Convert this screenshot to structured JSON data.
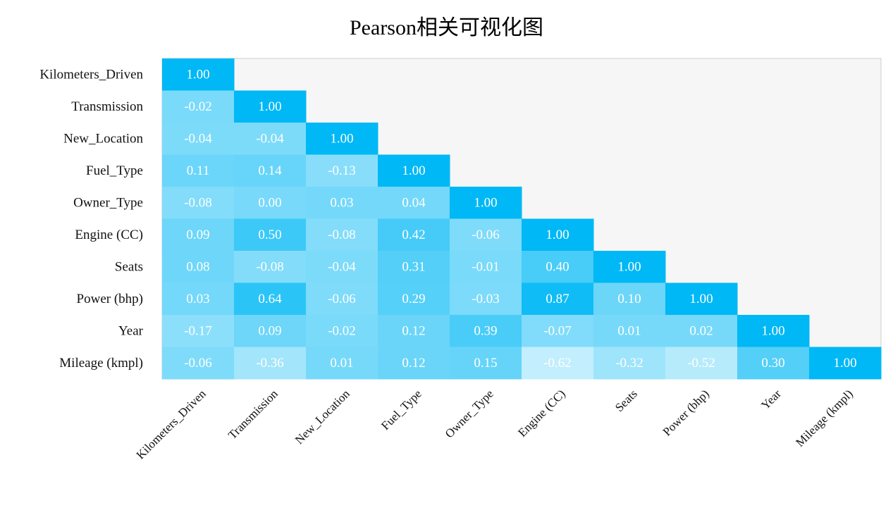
{
  "chart_data": {
    "type": "heatmap",
    "title": "Pearson相关可视化图",
    "variables": [
      "Kilometers_Driven",
      "Transmission",
      "New_Location",
      "Fuel_Type",
      "Owner_Type",
      "Engine (CC)",
      "Seats",
      "Power (bhp)",
      "Year",
      "Mileage (kmpl)"
    ],
    "matrix": [
      [
        1.0
      ],
      [
        -0.02,
        1.0
      ],
      [
        -0.04,
        -0.04,
        1.0
      ],
      [
        0.11,
        0.14,
        -0.13,
        1.0
      ],
      [
        -0.08,
        0.0,
        0.03,
        0.04,
        1.0
      ],
      [
        0.09,
        0.5,
        -0.08,
        0.42,
        -0.06,
        1.0
      ],
      [
        0.08,
        -0.08,
        -0.04,
        0.31,
        -0.01,
        0.4,
        1.0
      ],
      [
        0.03,
        0.64,
        -0.06,
        0.29,
        -0.03,
        0.87,
        0.1,
        1.0
      ],
      [
        -0.17,
        0.09,
        -0.02,
        0.12,
        0.39,
        -0.07,
        0.01,
        0.02,
        1.0
      ],
      [
        -0.06,
        -0.36,
        0.01,
        0.12,
        0.15,
        -0.62,
        -0.32,
        -0.52,
        0.3,
        1.0
      ]
    ],
    "value_format": "2 decimals",
    "mask": "upper-triangle",
    "colors": {
      "high": "#00b8f5",
      "low": "#ffffff",
      "background": "#f6f6f6",
      "frame": "#cccccc"
    }
  }
}
